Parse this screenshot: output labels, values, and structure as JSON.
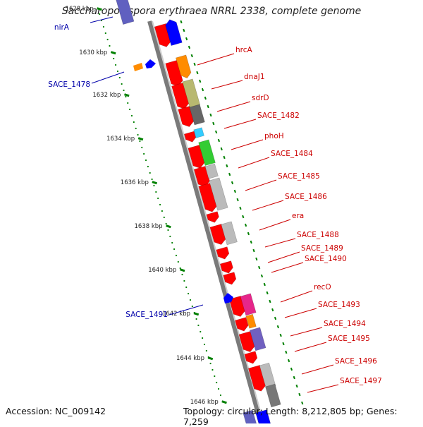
{
  "title": "Saccharopolyspora erythraea NRRL 2338, complete genome",
  "footer": {
    "accession": "Accession: NC_009142",
    "summary": "Topology: circular; Length: 8,212,805 bp; Genes: 7,259"
  },
  "colors": {
    "backbone": "#999999",
    "tick": "#008000",
    "forward_gene": "#ff0000",
    "reverse_gene": "#0000ff",
    "right_label": "#cc0000",
    "left_label": "#0000aa"
  },
  "scale_labels": [
    "1628 kbp",
    "1630 kbp",
    "1632 kbp",
    "1634 kbp",
    "1636 kbp",
    "1638 kbp",
    "1640 kbp",
    "1642 kbp",
    "1644 kbp",
    "1646 kbp"
  ],
  "right_labels": [
    "hrcA",
    "dnaJ1",
    "sdrD",
    "SACE_1482",
    "phoH",
    "SACE_1484",
    "SACE_1485",
    "SACE_1486",
    "era",
    "SACE_1488",
    "SACE_1489",
    "SACE_1490",
    "recO",
    "SACE_1493",
    "SACE_1494",
    "SACE_1495",
    "SACE_1496",
    "SACE_1497"
  ],
  "left_labels": [
    "nirA",
    "SACE_1478",
    "SACE_1491"
  ]
}
